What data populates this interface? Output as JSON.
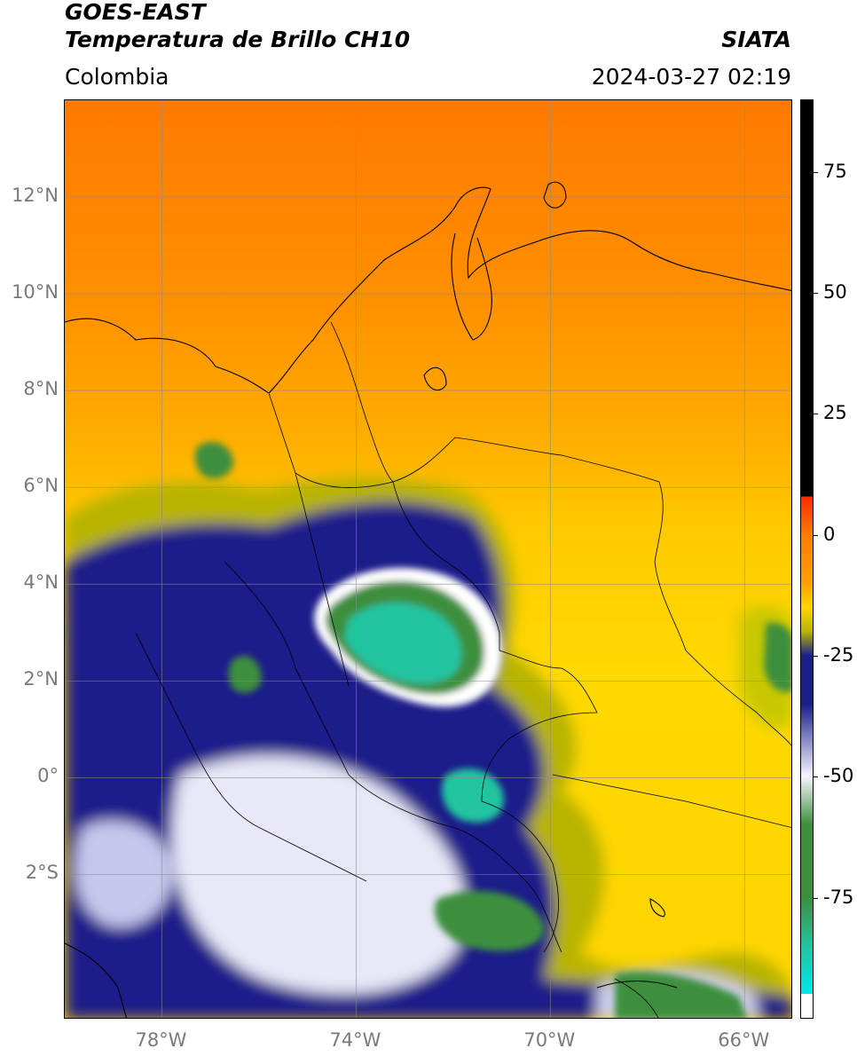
{
  "header": {
    "title_line1": "GOES-EAST",
    "title_line2": "Temperatura de Brillo CH10",
    "organization": "SIATA",
    "region": "Colombia",
    "timestamp": "2024-03-27 02:19"
  },
  "map": {
    "extent": {
      "lon_min": -80,
      "lon_max": -65,
      "lat_min": -5,
      "lat_max": 14
    },
    "lat_ticks": [
      {
        "value": 12,
        "label": "12°N"
      },
      {
        "value": 10,
        "label": "10°N"
      },
      {
        "value": 8,
        "label": "8°N"
      },
      {
        "value": 6,
        "label": "6°N"
      },
      {
        "value": 4,
        "label": "4°N"
      },
      {
        "value": 2,
        "label": "2°N"
      },
      {
        "value": 0,
        "label": "0°"
      },
      {
        "value": -2,
        "label": "2°S"
      }
    ],
    "lon_ticks": [
      {
        "value": -78,
        "label": "78°W"
      },
      {
        "value": -74,
        "label": "74°W"
      },
      {
        "value": -70,
        "label": "70°W"
      },
      {
        "value": -66,
        "label": "66°W"
      }
    ]
  },
  "colorbar": {
    "min": -100,
    "max": 90,
    "ticks": [
      {
        "value": 75,
        "label": "75"
      },
      {
        "value": 50,
        "label": "50"
      },
      {
        "value": 25,
        "label": "25"
      },
      {
        "value": 0,
        "label": "0"
      },
      {
        "value": -25,
        "label": "-25"
      },
      {
        "value": -50,
        "label": "-50"
      },
      {
        "value": -75,
        "label": "-75"
      }
    ]
  },
  "colors": {
    "warm": "#ff7a00",
    "orange": "#ffa200",
    "yellow": "#ffd500",
    "olive": "#b8b400",
    "navy": "#1a1f8a",
    "white": "#f5f5ff",
    "green": "#3c8f3c",
    "teal": "#20c4a0",
    "black": "#000000",
    "red": "#ff2a00",
    "cyan": "#00e8e8"
  }
}
